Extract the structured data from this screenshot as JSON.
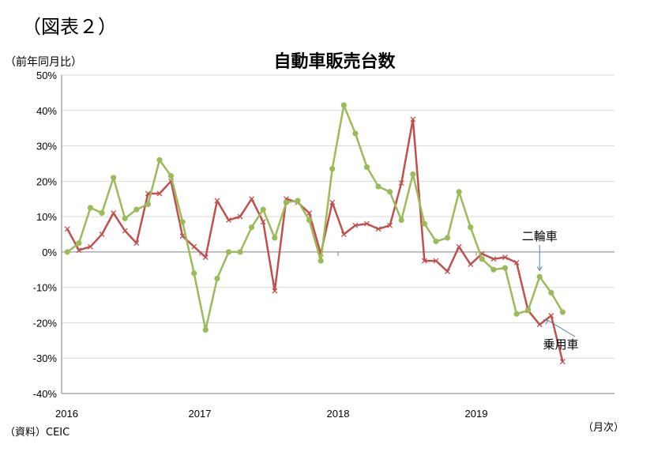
{
  "figure_label": "（図表２）",
  "chart_data": {
    "type": "line",
    "title": "自動車販売台数",
    "ylabel": "（前年同月比）",
    "xlabel": "（月次）",
    "source": "（資料）CEIC",
    "ylim": [
      -40,
      50
    ],
    "yticks": [
      "50%",
      "40%",
      "30%",
      "20%",
      "10%",
      "0%",
      "-10%",
      "-20%",
      "-30%",
      "-40%"
    ],
    "xticks": [
      "2016",
      "2017",
      "2018",
      "2019"
    ],
    "grid": "horizontal",
    "x_start": "2016-01",
    "series": [
      {
        "name": "乗用車",
        "color": "#c0504d",
        "marker": "x",
        "values": [
          6.5,
          0.5,
          1.5,
          5,
          11,
          6,
          2.5,
          16.5,
          16.5,
          20,
          4.5,
          1.5,
          -1.5,
          14.5,
          9,
          10,
          15,
          8.5,
          -11,
          15,
          14,
          11,
          -0.5,
          14,
          5,
          7.5,
          8,
          6.5,
          7.5,
          19.5,
          37.5,
          -2.5,
          -2.5,
          -5.5,
          1.5,
          -3.5,
          -0.5,
          -2,
          -1.5,
          -3,
          -16.5,
          -20.5,
          -18,
          -31
        ]
      },
      {
        "name": "二輪車",
        "color": "#9bbb59",
        "marker": "circle",
        "values": [
          0,
          2.5,
          12.5,
          11,
          21,
          9.5,
          12,
          13.5,
          26,
          21.5,
          8.5,
          -6,
          -22,
          -7.5,
          0,
          0,
          7,
          12,
          4,
          14,
          14.5,
          9,
          -2.5,
          23.5,
          41.5,
          33.5,
          24,
          18.5,
          17,
          9,
          22,
          8,
          3,
          4,
          17,
          7,
          -2,
          -5,
          -4.5,
          -17.5,
          -16.5,
          -7,
          -11.5,
          -17
        ]
      }
    ],
    "annotations": [
      {
        "text": "二輪車",
        "series": "二輪車"
      },
      {
        "text": "乗用車",
        "series": "乗用車"
      }
    ]
  },
  "style": {
    "axis_color": "#808080",
    "grid_color": "#d9d9d9",
    "annotation_arrow_color": "#4f81bd"
  }
}
